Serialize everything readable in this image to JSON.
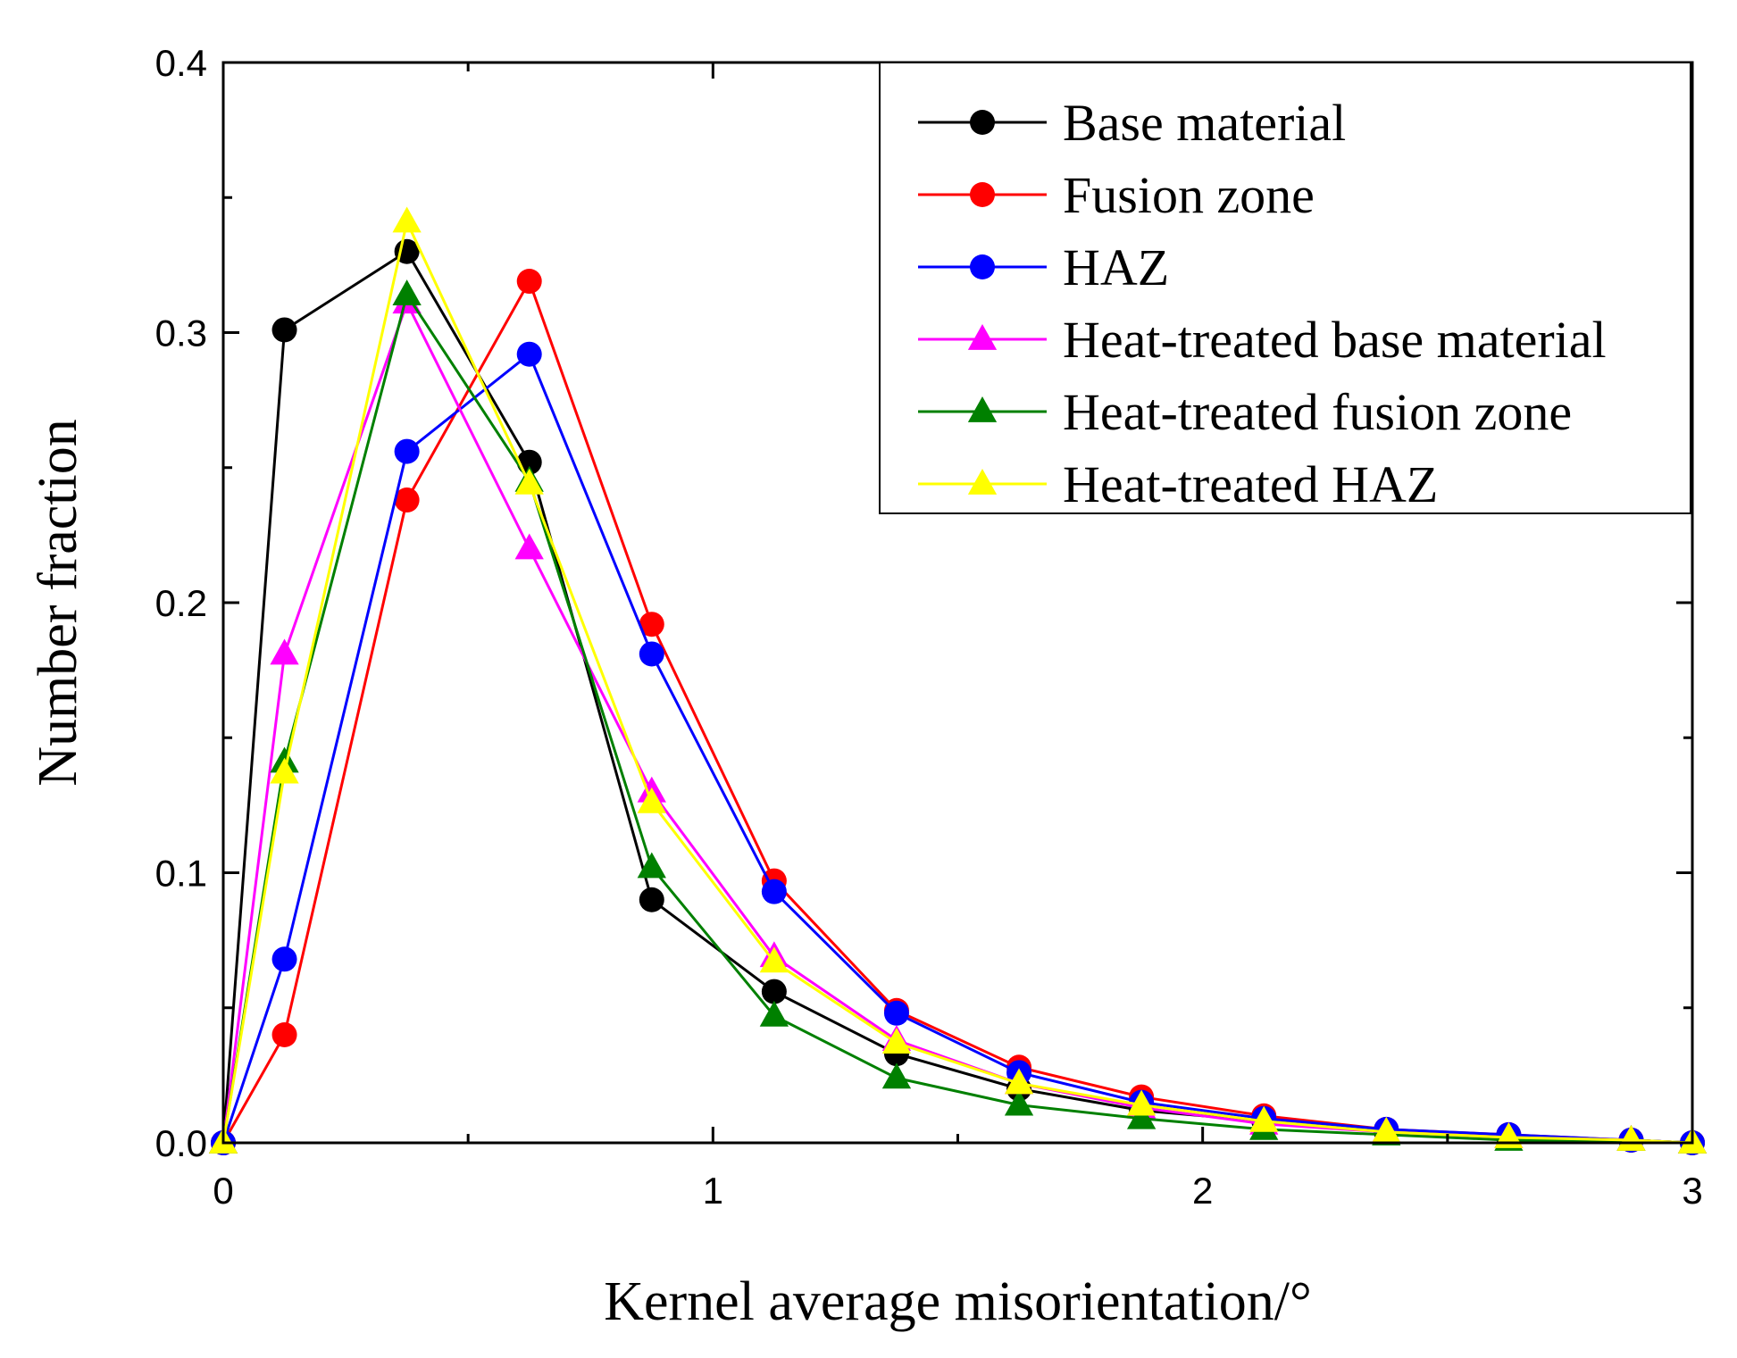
{
  "chart_data": {
    "type": "line",
    "xlabel": "Kernel average misorientation/°",
    "ylabel": "Number fraction",
    "xlim": [
      0,
      3
    ],
    "ylim": [
      0,
      0.4
    ],
    "x_ticks": [
      0,
      1,
      2,
      3
    ],
    "x_tick_labels": [
      "0",
      "1",
      "2",
      "3"
    ],
    "y_ticks": [
      0,
      0.1,
      0.2,
      0.3,
      0.4
    ],
    "y_tick_labels": [
      "0.0",
      "0.1",
      "0.2",
      "0.3",
      "0.4"
    ],
    "grid": false,
    "legend_position": "top-right",
    "x": [
      0,
      0.125,
      0.375,
      0.625,
      0.875,
      1.125,
      1.375,
      1.625,
      1.875,
      2.125,
      2.375,
      2.625,
      2.875,
      3.0
    ],
    "series": [
      {
        "name": "Base material",
        "color": "#000000",
        "marker": "circle",
        "x": [
          0,
          0.125,
          0.375,
          0.625,
          0.875,
          1.125,
          1.375,
          1.625,
          1.875,
          2.125,
          2.375,
          2.625,
          2.875,
          3.0
        ],
        "values": [
          0.0,
          0.301,
          0.33,
          0.252,
          0.09,
          0.056,
          0.033,
          0.02,
          0.012,
          0.008,
          0.004,
          0.002,
          0.001,
          0.0
        ]
      },
      {
        "name": "Fusion zone",
        "color": "#ff0000",
        "marker": "circle",
        "x": [
          0,
          0.125,
          0.375,
          0.625,
          0.875,
          1.125,
          1.375,
          1.625,
          1.875,
          2.125,
          2.375,
          2.625,
          2.875,
          3.0
        ],
        "values": [
          0.0,
          0.04,
          0.238,
          0.319,
          0.192,
          0.097,
          0.049,
          0.028,
          0.017,
          0.01,
          0.005,
          0.003,
          0.001,
          0.0
        ]
      },
      {
        "name": "HAZ",
        "color": "#0000ff",
        "marker": "circle",
        "x": [
          0,
          0.125,
          0.375,
          0.625,
          0.875,
          1.125,
          1.375,
          1.625,
          1.875,
          2.125,
          2.375,
          2.625,
          2.875,
          3.0
        ],
        "values": [
          0.0,
          0.068,
          0.256,
          0.292,
          0.181,
          0.093,
          0.048,
          0.026,
          0.015,
          0.009,
          0.005,
          0.003,
          0.001,
          0.0
        ]
      },
      {
        "name": "Heat-treated base material",
        "color": "#ff00ff",
        "marker": "triangle",
        "x": [
          0,
          0.125,
          0.375,
          0.625,
          0.875,
          1.125,
          1.375,
          1.625,
          1.875,
          2.125,
          2.375,
          2.625,
          2.875,
          3.0
        ],
        "values": [
          0.0,
          0.181,
          0.311,
          0.22,
          0.13,
          0.069,
          0.038,
          0.022,
          0.013,
          0.007,
          0.004,
          0.002,
          0.001,
          0.0
        ]
      },
      {
        "name": "Heat-treated fusion zone",
        "color": "#008000",
        "marker": "triangle",
        "x": [
          0,
          0.125,
          0.375,
          0.625,
          0.875,
          1.125,
          1.375,
          1.625,
          1.875,
          2.125,
          2.375,
          2.625,
          2.875,
          3.0
        ],
        "values": [
          0.0,
          0.141,
          0.314,
          0.245,
          0.102,
          0.047,
          0.024,
          0.014,
          0.009,
          0.005,
          0.003,
          0.001,
          0.001,
          0.0
        ]
      },
      {
        "name": "Heat-treated HAZ",
        "color": "#ffff00",
        "marker": "triangle",
        "x": [
          0,
          0.125,
          0.375,
          0.625,
          0.875,
          1.125,
          1.375,
          1.625,
          1.875,
          2.125,
          2.375,
          2.625,
          2.875,
          3.0
        ],
        "values": [
          0.0,
          0.137,
          0.341,
          0.244,
          0.126,
          0.067,
          0.037,
          0.022,
          0.014,
          0.008,
          0.004,
          0.002,
          0.001,
          0.0
        ]
      }
    ]
  }
}
